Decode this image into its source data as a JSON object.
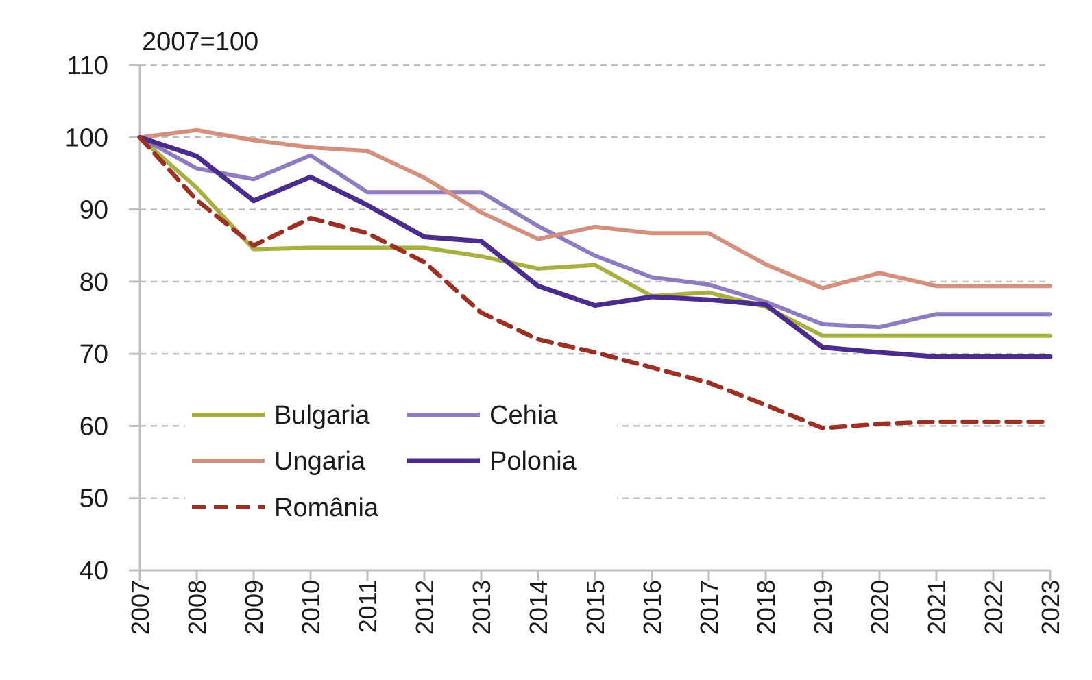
{
  "chart_data": {
    "type": "line",
    "title": "",
    "ylabel": "2007=100",
    "xlabel": "",
    "ylim": [
      40,
      110
    ],
    "yticks": [
      40,
      50,
      60,
      70,
      80,
      90,
      100,
      110
    ],
    "grid": true,
    "legend_position": "bottom-left",
    "x": [
      "2007",
      "2008",
      "2009",
      "2010",
      "2011",
      "2012",
      "2013",
      "2014",
      "2015",
      "2016",
      "2017",
      "2018",
      "2019",
      "2020",
      "2021",
      "2022",
      "2023"
    ],
    "series": [
      {
        "name": "Bulgaria",
        "color": "#a8b043",
        "style": "solid",
        "values": [
          100,
          93,
          84.5,
          84.7,
          84.7,
          84.7,
          83.5,
          81.8,
          82.3,
          78,
          78.5,
          76.5,
          72.5,
          72.5,
          72.5,
          72.5,
          72.5
        ]
      },
      {
        "name": "Cehia",
        "color": "#8f7cc0",
        "style": "solid",
        "values": [
          100,
          95.7,
          94.2,
          97.5,
          92.4,
          92.4,
          92.4,
          87.7,
          83.6,
          80.6,
          79.6,
          77.2,
          74.1,
          73.7,
          75.5,
          75.5,
          75.5
        ]
      },
      {
        "name": "Ungaria",
        "color": "#d4907e",
        "style": "solid",
        "values": [
          100,
          101,
          99.6,
          98.6,
          98.1,
          94.4,
          89.6,
          85.9,
          87.6,
          86.7,
          86.7,
          82.4,
          79.1,
          81.2,
          79.4,
          79.4,
          79.4
        ]
      },
      {
        "name": "Polonia",
        "color": "#4b2c8c",
        "style": "solid",
        "values": [
          100,
          97.4,
          91.2,
          94.5,
          90.6,
          86.2,
          85.6,
          79.4,
          76.7,
          77.9,
          77.5,
          76.8,
          70.9,
          70.2,
          69.6,
          69.6,
          69.6
        ]
      },
      {
        "name": "România",
        "color": "#9b3025",
        "style": "dashed",
        "values": [
          100,
          91.3,
          85,
          88.8,
          86.7,
          82.7,
          75.7,
          72,
          70.2,
          68.1,
          66,
          62.9,
          59.7,
          60.3,
          60.6,
          60.6,
          60.6
        ]
      }
    ]
  }
}
